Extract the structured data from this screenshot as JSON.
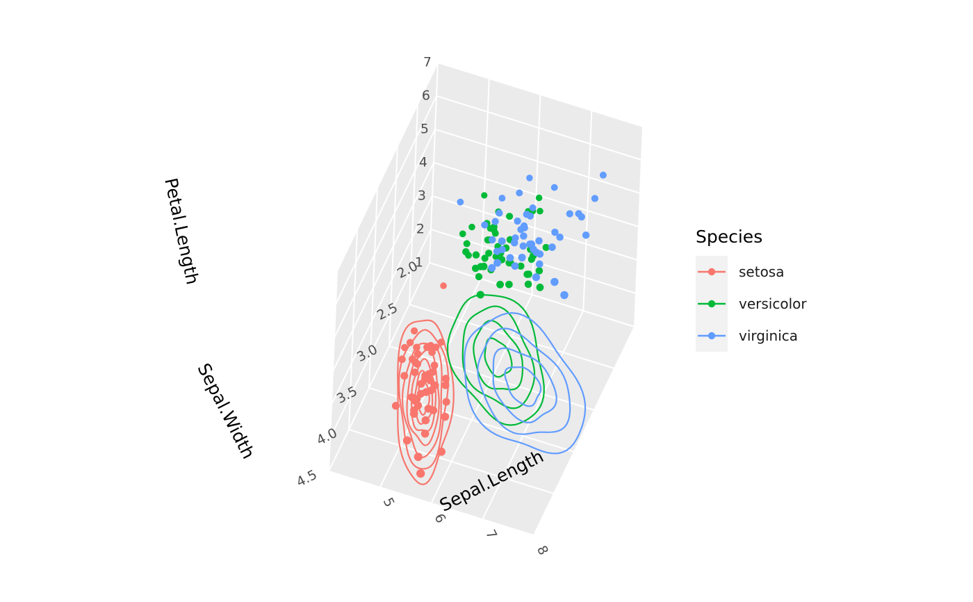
{
  "chart_data": {
    "type": "scatter",
    "subtype": "3d-scatter-with-floor-density-contours",
    "title": "",
    "axes": {
      "x": {
        "label": "Sepal.Length",
        "range": [
          4,
          8
        ],
        "ticks": [
          "5",
          "6",
          "7",
          "8"
        ]
      },
      "y": {
        "label": "Sepal.Width",
        "range": [
          2.0,
          4.5
        ],
        "ticks": [
          "2.0",
          "2.5",
          "3.0",
          "3.5",
          "4.0",
          "4.5"
        ]
      },
      "z": {
        "label": "Petal.Length",
        "range": [
          1,
          7
        ],
        "ticks": [
          "1",
          "2",
          "3",
          "4",
          "5",
          "6",
          "7"
        ]
      }
    },
    "grid": true,
    "panel_color": "#ebebeb",
    "legend": {
      "title": "Species",
      "position": "right",
      "entries": [
        "setosa",
        "versicolor",
        "virginica"
      ]
    },
    "series": [
      {
        "name": "setosa",
        "color": "#F8766D",
        "points": [
          [
            5.1,
            3.5,
            1.4
          ],
          [
            4.9,
            3.0,
            1.4
          ],
          [
            4.7,
            3.2,
            1.3
          ],
          [
            4.6,
            3.1,
            1.5
          ],
          [
            5.0,
            3.6,
            1.4
          ],
          [
            5.4,
            3.9,
            1.7
          ],
          [
            4.6,
            3.4,
            1.4
          ],
          [
            5.0,
            3.4,
            1.5
          ],
          [
            4.4,
            2.9,
            1.4
          ],
          [
            4.9,
            3.1,
            1.5
          ],
          [
            5.4,
            3.7,
            1.5
          ],
          [
            4.8,
            3.4,
            1.6
          ],
          [
            4.8,
            3.0,
            1.4
          ],
          [
            4.3,
            3.0,
            1.1
          ],
          [
            5.8,
            4.0,
            1.2
          ],
          [
            5.7,
            4.4,
            1.5
          ],
          [
            5.4,
            3.9,
            1.3
          ],
          [
            5.1,
            3.5,
            1.4
          ],
          [
            5.7,
            3.8,
            1.7
          ],
          [
            5.1,
            3.8,
            1.5
          ],
          [
            5.4,
            3.4,
            1.7
          ],
          [
            5.1,
            3.7,
            1.5
          ],
          [
            4.6,
            3.6,
            1.0
          ],
          [
            5.1,
            3.3,
            1.7
          ],
          [
            4.8,
            3.4,
            1.9
          ],
          [
            5.0,
            3.0,
            1.6
          ],
          [
            5.0,
            3.4,
            1.6
          ],
          [
            5.2,
            3.5,
            1.5
          ],
          [
            5.2,
            3.4,
            1.4
          ],
          [
            4.7,
            3.2,
            1.6
          ],
          [
            4.8,
            3.1,
            1.6
          ],
          [
            5.4,
            3.4,
            1.5
          ],
          [
            5.2,
            4.1,
            1.5
          ],
          [
            5.5,
            4.2,
            1.4
          ],
          [
            4.9,
            3.1,
            1.5
          ],
          [
            5.0,
            3.2,
            1.2
          ],
          [
            5.5,
            3.5,
            1.3
          ],
          [
            4.9,
            3.6,
            1.4
          ],
          [
            4.4,
            3.0,
            1.3
          ],
          [
            5.1,
            3.4,
            1.5
          ],
          [
            5.0,
            3.5,
            1.3
          ],
          [
            4.5,
            2.3,
            1.3
          ],
          [
            4.4,
            3.2,
            1.3
          ],
          [
            5.0,
            3.5,
            1.6
          ],
          [
            5.1,
            3.8,
            1.9
          ],
          [
            4.8,
            3.0,
            1.4
          ],
          [
            5.1,
            3.8,
            1.6
          ],
          [
            4.6,
            3.2,
            1.4
          ],
          [
            5.3,
            3.7,
            1.5
          ],
          [
            5.0,
            3.3,
            1.4
          ]
        ]
      },
      {
        "name": "versicolor",
        "color": "#00BA38",
        "points": [
          [
            7.0,
            3.2,
            4.7
          ],
          [
            6.4,
            3.2,
            4.5
          ],
          [
            6.9,
            3.1,
            4.9
          ],
          [
            5.5,
            2.3,
            4.0
          ],
          [
            6.5,
            2.8,
            4.6
          ],
          [
            5.7,
            2.8,
            4.5
          ],
          [
            6.3,
            3.3,
            4.7
          ],
          [
            4.9,
            2.4,
            3.3
          ],
          [
            6.6,
            2.9,
            4.6
          ],
          [
            5.2,
            2.7,
            3.9
          ],
          [
            5.0,
            2.0,
            3.5
          ],
          [
            5.9,
            3.0,
            4.2
          ],
          [
            6.0,
            2.2,
            4.0
          ],
          [
            6.1,
            2.9,
            4.7
          ],
          [
            5.6,
            2.9,
            3.6
          ],
          [
            6.7,
            3.1,
            4.4
          ],
          [
            5.6,
            3.0,
            4.5
          ],
          [
            5.8,
            2.7,
            4.1
          ],
          [
            6.2,
            2.2,
            4.5
          ],
          [
            5.6,
            2.5,
            3.9
          ],
          [
            5.9,
            3.2,
            4.8
          ],
          [
            6.1,
            2.8,
            4.0
          ],
          [
            6.3,
            2.5,
            4.9
          ],
          [
            6.1,
            2.8,
            4.7
          ],
          [
            6.4,
            2.9,
            4.3
          ],
          [
            6.6,
            3.0,
            4.4
          ],
          [
            6.8,
            2.8,
            4.8
          ],
          [
            6.7,
            3.0,
            5.0
          ],
          [
            6.0,
            2.9,
            4.5
          ],
          [
            5.7,
            2.6,
            3.5
          ],
          [
            5.5,
            2.4,
            3.8
          ],
          [
            5.5,
            2.4,
            3.7
          ],
          [
            5.8,
            2.7,
            3.9
          ],
          [
            6.0,
            2.7,
            5.1
          ],
          [
            5.4,
            3.0,
            4.5
          ],
          [
            6.0,
            3.4,
            4.5
          ],
          [
            6.7,
            3.1,
            4.7
          ],
          [
            6.3,
            2.3,
            4.4
          ],
          [
            5.6,
            3.0,
            4.1
          ],
          [
            5.5,
            2.5,
            4.0
          ],
          [
            5.5,
            2.6,
            4.4
          ],
          [
            6.1,
            3.0,
            4.6
          ],
          [
            5.8,
            2.6,
            4.0
          ],
          [
            5.0,
            2.3,
            3.3
          ],
          [
            5.6,
            2.7,
            4.2
          ],
          [
            5.7,
            3.0,
            4.2
          ],
          [
            5.7,
            2.9,
            4.2
          ],
          [
            6.2,
            2.9,
            4.3
          ],
          [
            5.1,
            2.5,
            3.0
          ],
          [
            5.7,
            2.8,
            4.1
          ]
        ]
      },
      {
        "name": "virginica",
        "color": "#619CFF",
        "points": [
          [
            6.3,
            3.3,
            6.0
          ],
          [
            5.8,
            2.7,
            5.1
          ],
          [
            7.1,
            3.0,
            5.9
          ],
          [
            6.3,
            2.9,
            5.6
          ],
          [
            6.5,
            3.0,
            5.8
          ],
          [
            7.6,
            3.0,
            6.6
          ],
          [
            4.9,
            2.5,
            4.5
          ],
          [
            7.3,
            2.9,
            6.3
          ],
          [
            6.7,
            2.5,
            5.8
          ],
          [
            7.2,
            3.6,
            6.1
          ],
          [
            6.5,
            3.2,
            5.1
          ],
          [
            6.4,
            2.7,
            5.3
          ],
          [
            6.8,
            3.0,
            5.5
          ],
          [
            5.7,
            2.5,
            5.0
          ],
          [
            5.8,
            2.8,
            5.1
          ],
          [
            6.4,
            3.2,
            5.3
          ],
          [
            6.5,
            3.0,
            5.5
          ],
          [
            7.7,
            3.8,
            6.7
          ],
          [
            7.7,
            2.6,
            6.9
          ],
          [
            6.0,
            2.2,
            5.0
          ],
          [
            6.9,
            3.2,
            5.7
          ],
          [
            5.6,
            2.8,
            4.9
          ],
          [
            7.7,
            2.8,
            6.7
          ],
          [
            6.3,
            2.7,
            4.9
          ],
          [
            6.7,
            3.3,
            5.7
          ],
          [
            7.2,
            3.2,
            6.0
          ],
          [
            6.2,
            2.8,
            4.8
          ],
          [
            6.1,
            3.0,
            4.9
          ],
          [
            6.4,
            2.8,
            5.6
          ],
          [
            7.2,
            3.0,
            5.8
          ],
          [
            7.4,
            2.8,
            6.1
          ],
          [
            7.9,
            3.8,
            6.4
          ],
          [
            6.4,
            2.8,
            5.6
          ],
          [
            6.3,
            2.8,
            5.1
          ],
          [
            6.1,
            2.6,
            5.6
          ],
          [
            7.7,
            3.0,
            6.1
          ],
          [
            6.3,
            3.4,
            5.6
          ],
          [
            6.4,
            3.1,
            5.5
          ],
          [
            6.0,
            3.0,
            4.8
          ],
          [
            6.9,
            3.1,
            5.4
          ],
          [
            6.7,
            3.1,
            5.6
          ],
          [
            6.9,
            3.1,
            5.1
          ],
          [
            5.8,
            2.7,
            5.1
          ],
          [
            6.8,
            3.2,
            5.9
          ],
          [
            6.7,
            3.3,
            5.7
          ],
          [
            6.7,
            3.0,
            5.2
          ],
          [
            6.3,
            2.5,
            5.0
          ],
          [
            6.5,
            3.0,
            5.2
          ],
          [
            6.2,
            3.4,
            5.4
          ],
          [
            5.9,
            3.0,
            5.1
          ]
        ]
      }
    ]
  }
}
